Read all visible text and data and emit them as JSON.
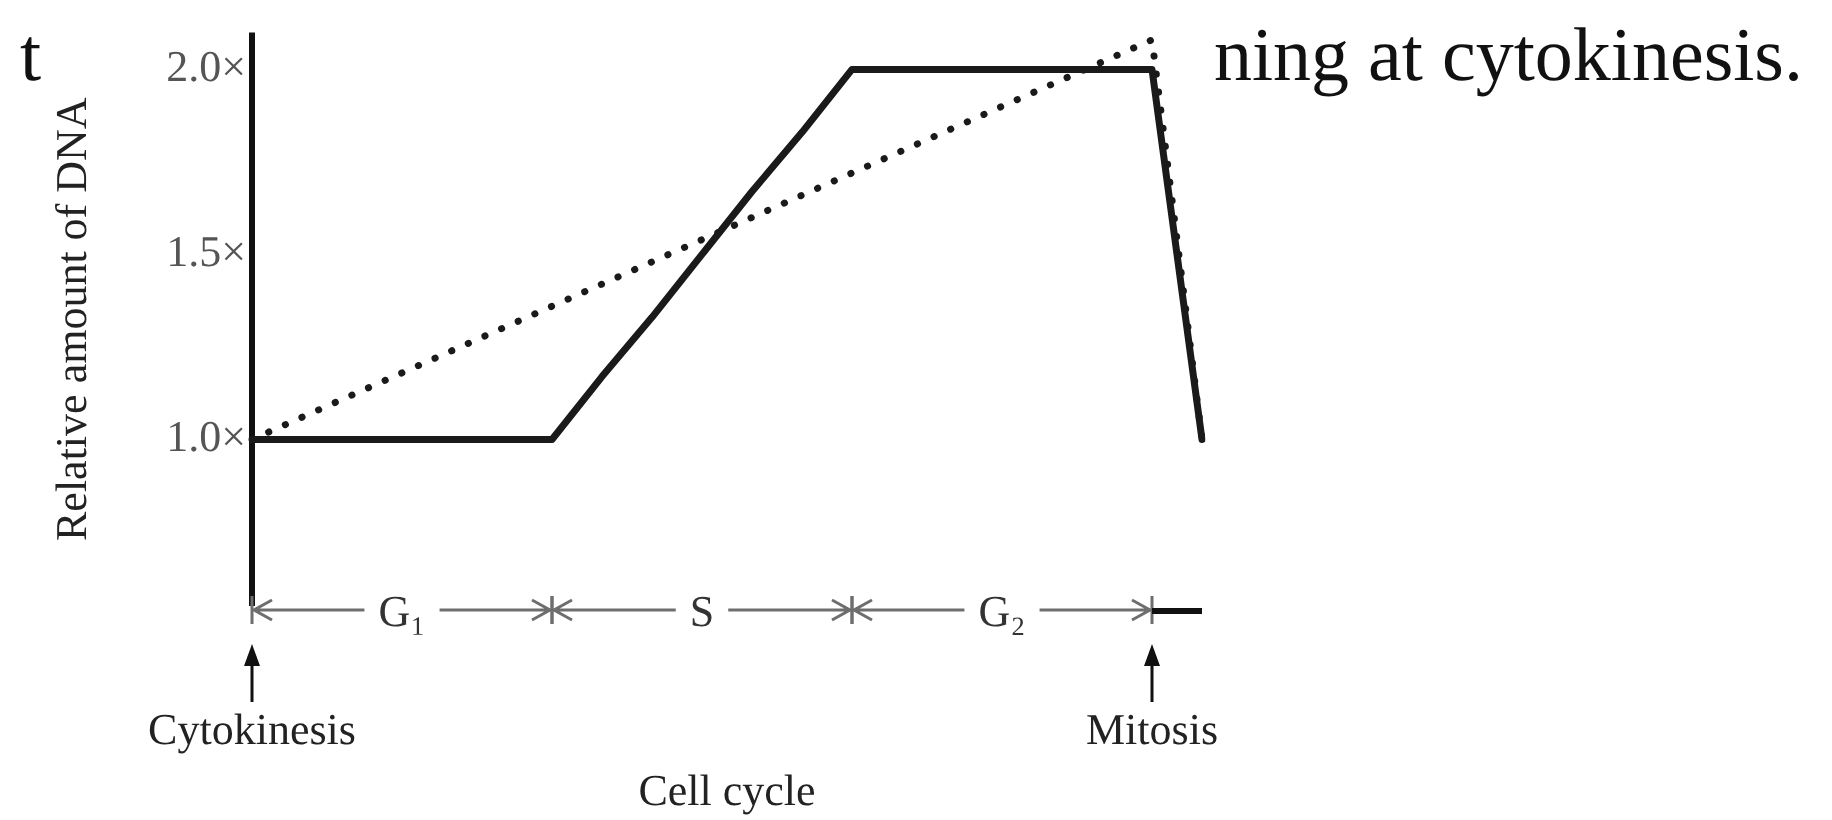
{
  "chart_data": {
    "type": "line",
    "xlabel": "Cell cycle",
    "ylabel": "Relative amount of DNA",
    "categories": [
      "Cytokinesis",
      null,
      null,
      null,
      null,
      null,
      null,
      null,
      null,
      null,
      null,
      null,
      null,
      null,
      null,
      null,
      null,
      null,
      "Mitosis",
      null
    ],
    "ylim": [
      0.55,
      2.1
    ],
    "yticks": [
      {
        "value": 1,
        "label": "1.0×"
      },
      {
        "value": 1.5,
        "label": "1.5×"
      },
      {
        "value": 2,
        "label": "2.0×"
      }
    ],
    "series": [
      {
        "color": "#1a1a1a",
        "line_style": "solid",
        "values": [
          1,
          1,
          1,
          1,
          1,
          1,
          1,
          1.17,
          1.33,
          1.5,
          1.67,
          1.83,
          2,
          2,
          2,
          2,
          2,
          2,
          2,
          1
        ]
      },
      {
        "color": "#1a1a1a",
        "line_style": "dotted",
        "values": [
          1,
          1.06,
          1.12,
          1.18,
          1.24,
          1.3,
          1.36,
          1.42,
          1.48,
          1.54,
          1.6,
          1.66,
          1.72,
          1.78,
          1.84,
          1.9,
          1.96,
          2.02,
          2.08,
          1
        ]
      }
    ],
    "annotations": [
      "t",
      "ning at cytokinesis.",
      "G₁",
      "S",
      "G₂"
    ]
  }
}
